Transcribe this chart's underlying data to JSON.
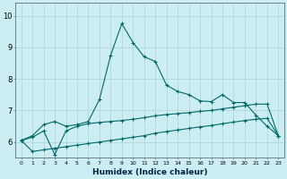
{
  "xlabel": "Humidex (Indice chaleur)",
  "ylabel": "",
  "xlim": [
    -0.5,
    23.5
  ],
  "ylim": [
    5.5,
    10.4
  ],
  "bg_color": "#cceef2",
  "grid_color": "#b0d8dc",
  "line_color": "#006868",
  "xticks": [
    0,
    1,
    2,
    3,
    4,
    5,
    6,
    7,
    8,
    9,
    10,
    11,
    12,
    13,
    14,
    15,
    16,
    17,
    18,
    19,
    20,
    21,
    22,
    23
  ],
  "yticks": [
    6,
    7,
    8,
    9,
    10
  ],
  "line1_x": [
    0,
    1,
    2,
    3,
    4,
    5,
    6,
    7,
    8,
    9,
    10,
    11,
    12,
    13,
    14,
    15,
    16,
    17,
    18,
    19,
    20,
    21,
    22,
    23
  ],
  "line1_y": [
    6.05,
    6.2,
    6.55,
    6.65,
    6.5,
    6.55,
    6.65,
    7.35,
    8.75,
    9.75,
    9.15,
    8.7,
    8.55,
    7.8,
    7.6,
    7.5,
    7.3,
    7.28,
    7.5,
    7.25,
    7.25,
    6.85,
    6.5,
    6.2
  ],
  "line2_x": [
    0,
    1,
    2,
    3,
    4,
    5,
    6,
    7,
    8,
    9,
    10,
    11,
    12,
    13,
    14,
    15,
    16,
    17,
    18,
    19,
    20,
    21,
    22,
    23
  ],
  "line2_y": [
    6.05,
    6.15,
    6.35,
    5.6,
    6.35,
    6.5,
    6.58,
    6.62,
    6.65,
    6.68,
    6.72,
    6.77,
    6.83,
    6.87,
    6.9,
    6.93,
    6.97,
    7.0,
    7.05,
    7.1,
    7.15,
    7.2,
    7.2,
    6.2
  ],
  "line3_x": [
    0,
    1,
    2,
    3,
    4,
    5,
    6,
    7,
    8,
    9,
    10,
    11,
    12,
    13,
    14,
    15,
    16,
    17,
    18,
    19,
    20,
    21,
    22,
    23
  ],
  "line3_y": [
    6.05,
    5.7,
    5.75,
    5.8,
    5.85,
    5.9,
    5.95,
    6.0,
    6.05,
    6.1,
    6.15,
    6.2,
    6.28,
    6.33,
    6.38,
    6.43,
    6.48,
    6.52,
    6.58,
    6.63,
    6.68,
    6.72,
    6.75,
    6.2
  ]
}
